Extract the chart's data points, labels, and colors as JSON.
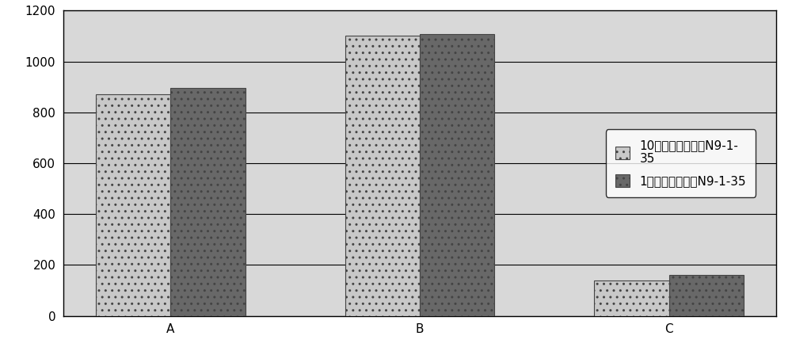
{
  "categories": [
    "A",
    "B",
    "C"
  ],
  "series1_values": [
    870,
    1100,
    140
  ],
  "series2_values": [
    895,
    1108,
    160
  ],
  "series1_label": "10代枯草芽孢杆菌N9-1-\n35",
  "series2_label": "1代枯草芽孢杆菌N9-1-35",
  "series1_color": "#c8c8c8",
  "series2_color": "#686868",
  "bar_edge_color": "#444444",
  "background_color": "#ffffff",
  "plot_bg_color": "#d8d8d8",
  "ylim": [
    0,
    1200
  ],
  "yticks": [
    0,
    200,
    400,
    600,
    800,
    1000,
    1200
  ],
  "bar_width": 0.3,
  "figsize": [
    10.0,
    4.43
  ],
  "dpi": 100,
  "grid_color": "#000000",
  "legend_fontsize": 11,
  "tick_fontsize": 11,
  "border_color": "#000000"
}
